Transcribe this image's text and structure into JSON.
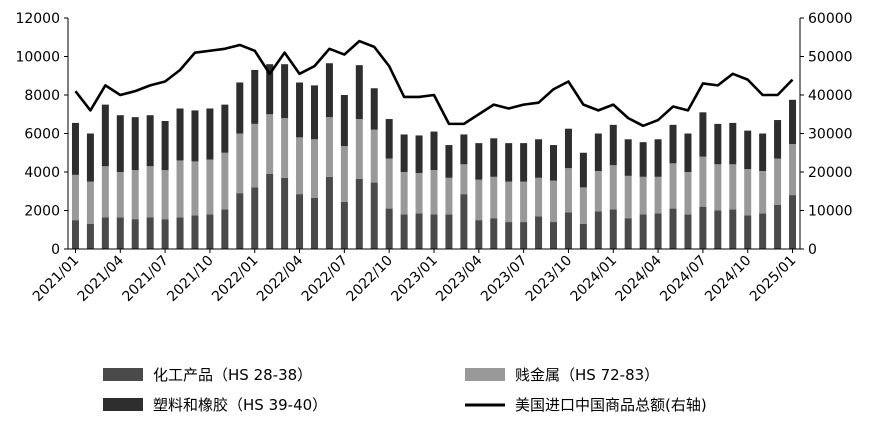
{
  "chart_data": {
    "type": "bar+line",
    "stacked": true,
    "colors": {
      "chemicals": "#4a4a4a",
      "metals": "#999999",
      "plastics": "#2e2e2e",
      "total_line": "#000000"
    },
    "x": [
      "2021/01",
      "2021/02",
      "2021/03",
      "2021/04",
      "2021/05",
      "2021/06",
      "2021/07",
      "2021/08",
      "2021/09",
      "2021/10",
      "2021/11",
      "2021/12",
      "2022/01",
      "2022/02",
      "2022/03",
      "2022/04",
      "2022/05",
      "2022/06",
      "2022/07",
      "2022/08",
      "2022/09",
      "2022/10",
      "2022/11",
      "2022/12",
      "2023/01",
      "2023/02",
      "2023/03",
      "2023/04",
      "2023/05",
      "2023/06",
      "2023/07",
      "2023/08",
      "2023/09",
      "2023/10",
      "2023/11",
      "2023/12",
      "2024/01",
      "2024/02",
      "2024/03",
      "2024/04",
      "2024/05",
      "2024/06",
      "2024/07",
      "2024/08",
      "2024/09",
      "2024/10",
      "2024/11",
      "2024/12",
      "2025/01"
    ],
    "x_tick_labels": [
      "2021/01",
      "2021/04",
      "2021/07",
      "2021/10",
      "2022/01",
      "2022/04",
      "2022/07",
      "2022/10",
      "2023/01",
      "2023/04",
      "2023/07",
      "2023/10",
      "2024/01",
      "2024/04",
      "2024/07",
      "2024/10",
      "2025/01"
    ],
    "left_axis": {
      "ylim": [
        0,
        12000
      ],
      "ticks": [
        "0",
        "2000",
        "4000",
        "6000",
        "8000",
        "10000",
        "12000"
      ]
    },
    "right_axis": {
      "ylim": [
        0,
        60000
      ],
      "ticks": [
        "0",
        "10000",
        "20000",
        "30000",
        "40000",
        "50000",
        "60000"
      ]
    },
    "series": [
      {
        "name": "化工产品（HS 28-38）",
        "axis": "left",
        "kind": "bar",
        "values": [
          1500,
          1300,
          1650,
          1650,
          1550,
          1650,
          1550,
          1650,
          1750,
          1800,
          2050,
          2900,
          3200,
          3900,
          3700,
          2850,
          2650,
          3750,
          2450,
          3650,
          3450,
          2100,
          1800,
          1850,
          1800,
          1800,
          2850,
          1500,
          1600,
          1400,
          1400,
          1700,
          1400,
          1900,
          1300,
          1950,
          2050,
          1600,
          1800,
          1850,
          2100,
          1800,
          2200,
          2000,
          2050,
          1750,
          1850,
          2300,
          2800
        ]
      },
      {
        "name": "贱金属（HS 72-83）",
        "axis": "left",
        "kind": "bar",
        "values": [
          2350,
          2200,
          2650,
          2350,
          2550,
          2650,
          2550,
          2950,
          2800,
          2850,
          2950,
          3100,
          3300,
          3100,
          3100,
          2950,
          3050,
          3100,
          2900,
          3100,
          2750,
          2600,
          2200,
          2100,
          2300,
          1900,
          1550,
          2100,
          2150,
          2100,
          2100,
          2000,
          2150,
          2300,
          1900,
          2100,
          2300,
          2200,
          1950,
          1900,
          2350,
          2200,
          2600,
          2400,
          2350,
          2400,
          2200,
          2400,
          2650
        ]
      },
      {
        "name": "塑料和橡胶（HS 39-40）",
        "axis": "left",
        "kind": "bar",
        "values": [
          2700,
          2500,
          3200,
          2950,
          2750,
          2650,
          2550,
          2700,
          2650,
          2650,
          2500,
          2650,
          2800,
          2600,
          2800,
          2850,
          2800,
          2800,
          2650,
          2800,
          2150,
          2050,
          1950,
          1950,
          2000,
          1700,
          1550,
          1900,
          2000,
          2000,
          2000,
          2000,
          1850,
          2050,
          1800,
          1950,
          2100,
          1900,
          1800,
          1950,
          2000,
          2000,
          2300,
          2100,
          2150,
          2000,
          1950,
          2000,
          2300
        ]
      },
      {
        "name": "美国进口中国商品总额(右轴)",
        "axis": "right",
        "kind": "line",
        "values": [
          41000,
          36000,
          42500,
          40000,
          41000,
          42500,
          43500,
          46500,
          51000,
          51500,
          52000,
          53000,
          51500,
          45500,
          51000,
          45500,
          47500,
          52000,
          50500,
          54000,
          52500,
          47500,
          39500,
          39500,
          40000,
          32500,
          32500,
          35000,
          37500,
          36500,
          37500,
          38000,
          41500,
          43500,
          37500,
          36000,
          37500,
          34000,
          32000,
          33500,
          37000,
          36000,
          43000,
          42500,
          45500,
          44000,
          40000,
          40000,
          44000
        ]
      }
    ]
  }
}
